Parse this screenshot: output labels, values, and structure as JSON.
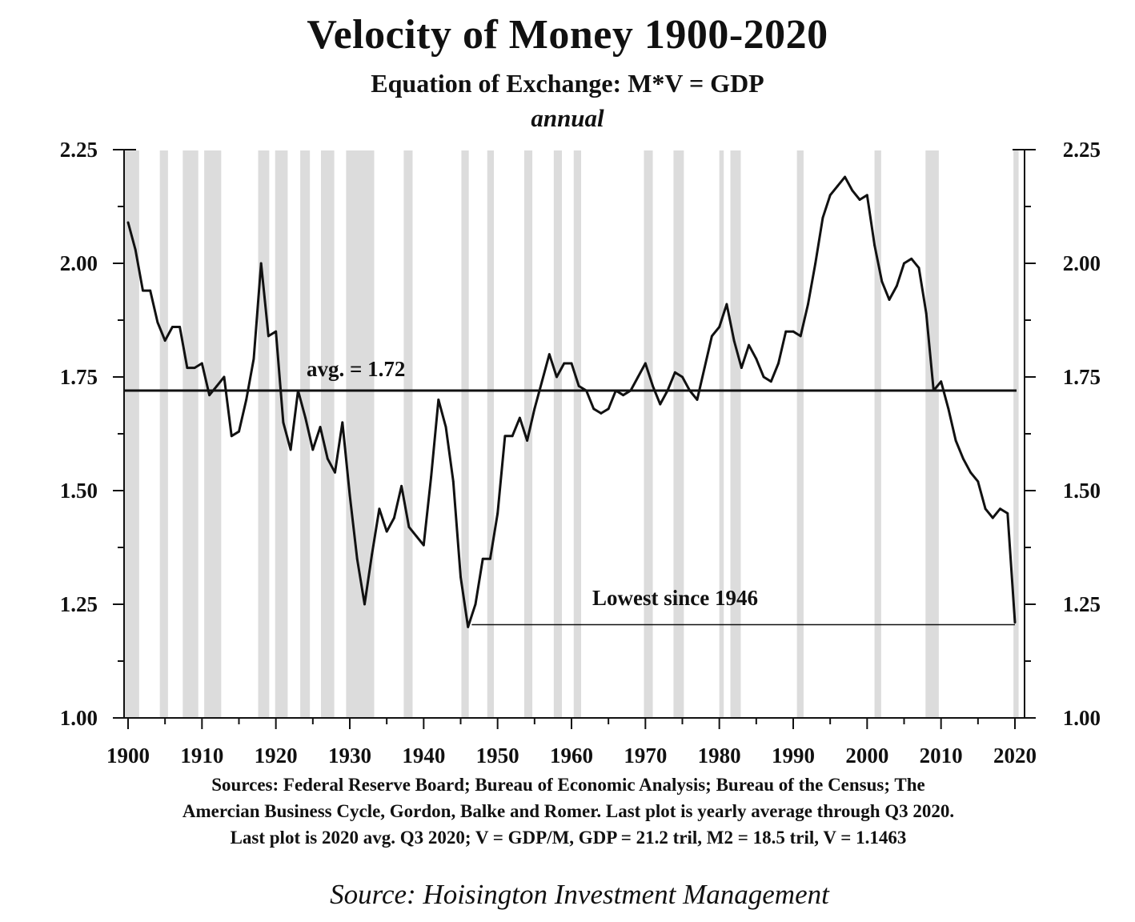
{
  "header": {
    "title": "Velocity of Money 1900-2020",
    "subtitle": "Equation of Exchange: M*V = GDP",
    "frequency": "annual"
  },
  "footer": {
    "sources_lines": [
      "Sources: Federal Reserve Board; Bureau of Economic Analysis; Bureau of the Census; The",
      "Amercian Business Cycle, Gordon, Balke and Romer. Last plot is yearly average through Q3 2020.",
      "Last plot is 2020 avg.  Q3 2020; V = GDP/M, GDP = 21.2 tril, M2 = 18.5 tril, V = 1.1463"
    ],
    "credit": "Source: Hoisington Investment Management"
  },
  "chart_data": {
    "type": "line",
    "title": "Velocity of Money 1900-2020",
    "subtitle": "Equation of Exchange: M*V = GDP",
    "xlim": [
      1900,
      2020
    ],
    "ylim": [
      1.0,
      2.25
    ],
    "x_ticks": [
      1900,
      1910,
      1920,
      1930,
      1940,
      1950,
      1960,
      1970,
      1980,
      1990,
      2000,
      2010,
      2020
    ],
    "x_tick_labels": [
      "1900",
      "1910",
      "1920",
      "1930",
      "1940",
      "1950",
      "1960",
      "1970",
      "1980",
      "1990",
      "2000",
      "2010",
      "2020"
    ],
    "y_ticks": [
      1.0,
      1.25,
      1.5,
      1.75,
      2.0,
      2.25
    ],
    "y_tick_labels": [
      "1.00",
      "1.25",
      "1.50",
      "1.75",
      "2.00",
      "2.25"
    ],
    "y_axis_both_sides": true,
    "grid": false,
    "line_color": "#111111",
    "recession_color": "#dcdcdc",
    "recession_shading": [
      [
        1899.5,
        1901.5
      ],
      [
        1904.3,
        1905.4
      ],
      [
        1907.4,
        1909.5
      ],
      [
        1910.3,
        1912.6
      ],
      [
        1917.6,
        1919.1
      ],
      [
        1919.9,
        1921.6
      ],
      [
        1923.3,
        1924.6
      ],
      [
        1926.1,
        1927.9
      ],
      [
        1929.5,
        1933.3
      ],
      [
        1937.3,
        1938.5
      ],
      [
        1945.1,
        1946.1
      ],
      [
        1948.6,
        1949.5
      ],
      [
        1953.6,
        1954.7
      ],
      [
        1957.6,
        1958.7
      ],
      [
        1960.3,
        1961.3
      ],
      [
        1969.8,
        1971.0
      ],
      [
        1973.8,
        1975.2
      ],
      [
        1980.0,
        1980.6
      ],
      [
        1981.5,
        1982.9
      ],
      [
        1990.5,
        1991.4
      ],
      [
        2001.0,
        2001.9
      ],
      [
        2007.9,
        2009.7
      ],
      [
        2019.8,
        2020.5
      ]
    ],
    "avg_line": {
      "value": 1.72,
      "label": "avg. = 1.72"
    },
    "annotation": {
      "text": "Lowest since 1946",
      "from_x": 1946.5,
      "to_x": 2020,
      "y": 1.205
    },
    "series": [
      {
        "x": [
          1900,
          1901,
          1902,
          1903,
          1904,
          1905,
          1906,
          1907,
          1908,
          1909,
          1910,
          1911,
          1912,
          1913,
          1914,
          1915,
          1916,
          1917,
          1918,
          1919,
          1920,
          1921,
          1922,
          1923,
          1924,
          1925,
          1926,
          1927,
          1928,
          1929,
          1930,
          1931,
          1932,
          1933,
          1934,
          1935,
          1936,
          1937,
          1938,
          1939,
          1940,
          1941,
          1942,
          1943,
          1944,
          1945,
          1946,
          1947,
          1948,
          1949,
          1950,
          1951,
          1952,
          1953,
          1954,
          1955,
          1956,
          1957,
          1958,
          1959,
          1960,
          1961,
          1962,
          1963,
          1964,
          1965,
          1966,
          1967,
          1968,
          1969,
          1970,
          1971,
          1972,
          1973,
          1974,
          1975,
          1976,
          1977,
          1978,
          1979,
          1980,
          1981,
          1982,
          1983,
          1984,
          1985,
          1986,
          1987,
          1988,
          1989,
          1990,
          1991,
          1992,
          1993,
          1994,
          1995,
          1996,
          1997,
          1998,
          1999,
          2000,
          2001,
          2002,
          2003,
          2004,
          2005,
          2006,
          2007,
          2008,
          2009,
          2010,
          2011,
          2012,
          2013,
          2014,
          2015,
          2016,
          2017,
          2018,
          2019,
          2020
        ],
        "values": [
          2.09,
          2.03,
          1.94,
          1.94,
          1.87,
          1.83,
          1.86,
          1.86,
          1.77,
          1.77,
          1.78,
          1.71,
          1.73,
          1.75,
          1.62,
          1.63,
          1.7,
          1.79,
          2.0,
          1.84,
          1.85,
          1.65,
          1.59,
          1.72,
          1.66,
          1.59,
          1.64,
          1.57,
          1.54,
          1.65,
          1.49,
          1.35,
          1.25,
          1.36,
          1.46,
          1.41,
          1.44,
          1.51,
          1.42,
          1.4,
          1.38,
          1.53,
          1.7,
          1.64,
          1.52,
          1.31,
          1.2,
          1.25,
          1.35,
          1.35,
          1.45,
          1.62,
          1.62,
          1.66,
          1.61,
          1.68,
          1.74,
          1.8,
          1.75,
          1.78,
          1.78,
          1.73,
          1.72,
          1.68,
          1.67,
          1.68,
          1.72,
          1.71,
          1.72,
          1.75,
          1.78,
          1.73,
          1.69,
          1.72,
          1.76,
          1.75,
          1.72,
          1.7,
          1.77,
          1.84,
          1.86,
          1.91,
          1.83,
          1.77,
          1.82,
          1.79,
          1.75,
          1.74,
          1.78,
          1.85,
          1.85,
          1.84,
          1.91,
          2.0,
          2.1,
          2.15,
          2.17,
          2.19,
          2.16,
          2.14,
          2.15,
          2.04,
          1.96,
          1.92,
          1.95,
          2.0,
          2.01,
          1.99,
          1.89,
          1.72,
          1.74,
          1.68,
          1.61,
          1.57,
          1.54,
          1.52,
          1.46,
          1.44,
          1.46,
          1.45,
          1.21
        ]
      }
    ]
  }
}
